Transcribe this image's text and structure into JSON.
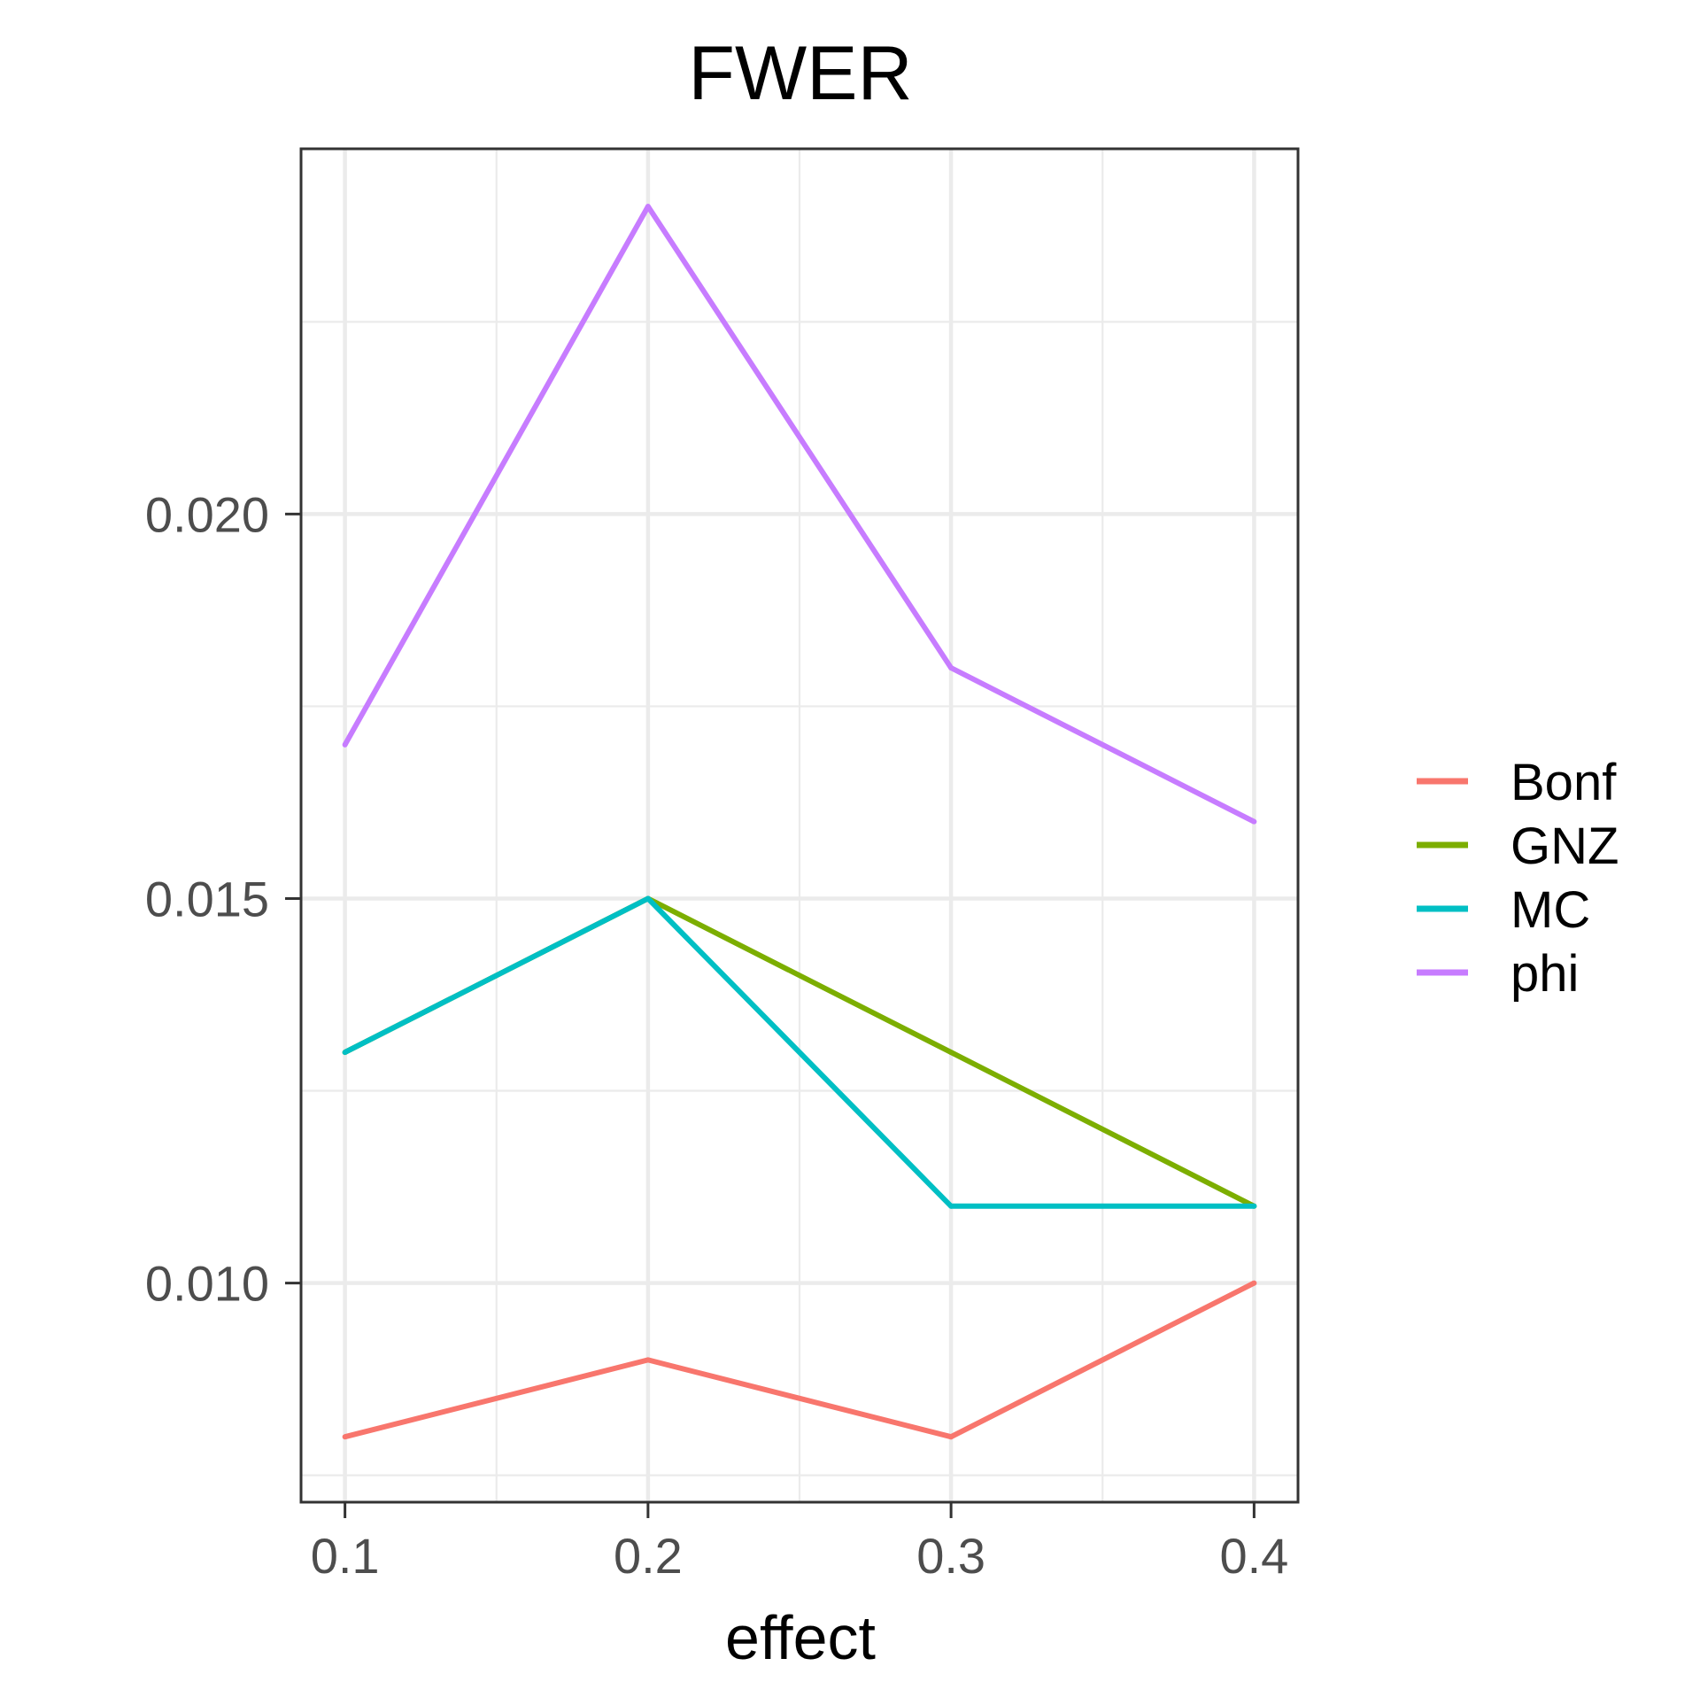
{
  "chart_data": {
    "type": "line",
    "title": "FWER",
    "xlabel": "effect",
    "ylabel": "",
    "x": [
      0.1,
      0.2,
      0.3,
      0.4
    ],
    "x_tick_labels": [
      "0.1",
      "0.2",
      "0.3",
      "0.4"
    ],
    "xlim": [
      0.0855,
      0.4145
    ],
    "ylim": [
      0.00715,
      0.02475
    ],
    "y_ticks": [
      0.01,
      0.015,
      0.02
    ],
    "y_tick_labels": [
      "0.010",
      "0.015",
      "0.020"
    ],
    "grid": true,
    "legend_position": "right",
    "series": [
      {
        "name": "Bonf",
        "color": "#F8766D",
        "values": [
          0.008,
          0.009,
          0.008,
          0.01
        ]
      },
      {
        "name": "GNZ",
        "color": "#7CAE00",
        "values": [
          0.013,
          0.015,
          0.013,
          0.011
        ]
      },
      {
        "name": "MC",
        "color": "#00BFC4",
        "values": [
          0.013,
          0.015,
          0.011,
          0.011
        ]
      },
      {
        "name": "phi",
        "color": "#C77CFF",
        "values": [
          0.017,
          0.024,
          0.018,
          0.016
        ]
      }
    ]
  }
}
